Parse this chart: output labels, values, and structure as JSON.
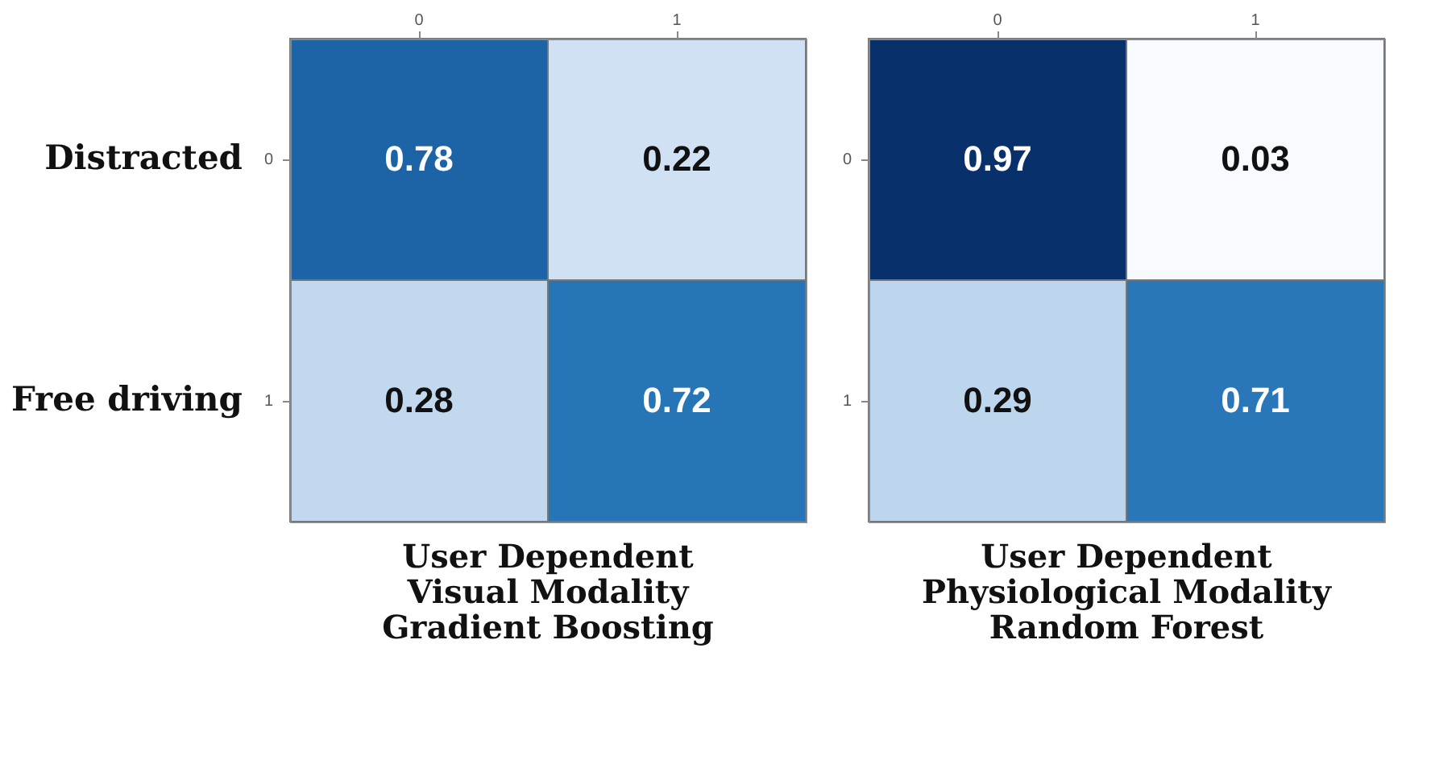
{
  "chart_data": [
    {
      "type": "heatmap",
      "title": "User Dependent\nVisual Modality\nGradient Boosting",
      "categories": [
        "0",
        "1"
      ],
      "y_categories": [
        "0",
        "1"
      ],
      "y2_categories": [
        "Distracted",
        "Free driving"
      ],
      "cells": [
        [
          0.78,
          0.22
        ],
        [
          0.28,
          0.72
        ]
      ],
      "data_labels": true,
      "grid": false
    },
    {
      "type": "heatmap",
      "title": "User Dependent\nPhysiological Modality\nRandom Forest",
      "categories": [
        "0",
        "1"
      ],
      "y_categories": [
        "0",
        "1"
      ],
      "cells": [
        [
          0.97,
          0.03
        ],
        [
          0.29,
          0.71
        ]
      ],
      "data_labels": true,
      "grid": false
    }
  ]
}
